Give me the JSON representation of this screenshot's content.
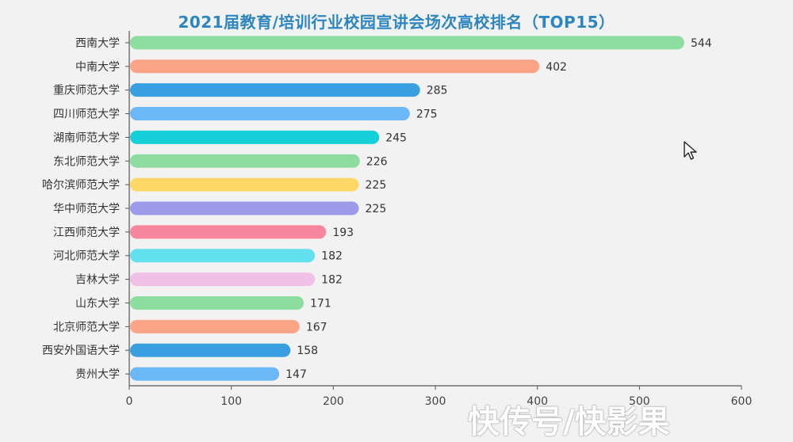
{
  "chart_data": {
    "type": "bar",
    "orientation": "horizontal",
    "title": "2021届教育/培训行业校园宣讲会场次高校排名（TOP15）",
    "categories": [
      "西南大学",
      "中南大学",
      "重庆师范大学",
      "四川师范大学",
      "湖南师范大学",
      "东北师范大学",
      "哈尔滨师范大学",
      "华中师范大学",
      "江西师范大学",
      "河北师范大学",
      "吉林大学",
      "山东大学",
      "北京师范大学",
      "西安外国语大学",
      "贵州大学"
    ],
    "values": [
      544,
      402,
      285,
      275,
      245,
      226,
      225,
      225,
      193,
      182,
      182,
      171,
      167,
      158,
      147
    ],
    "colors": [
      "#8ddca0",
      "#fba488",
      "#3a9fe0",
      "#6cb7f5",
      "#17cfd8",
      "#8ddca0",
      "#fed867",
      "#9e9aea",
      "#f7879e",
      "#62e0ee",
      "#f1c0e6",
      "#8ddca0",
      "#fba488",
      "#3a9fe0",
      "#6cb7f5"
    ],
    "xlim": [
      0,
      600
    ],
    "xticks": [
      0,
      100,
      200,
      300,
      400,
      500,
      600
    ],
    "xlabel": "",
    "ylabel": "",
    "grid": false,
    "legend": "none"
  },
  "watermark": "快传号/快影果"
}
